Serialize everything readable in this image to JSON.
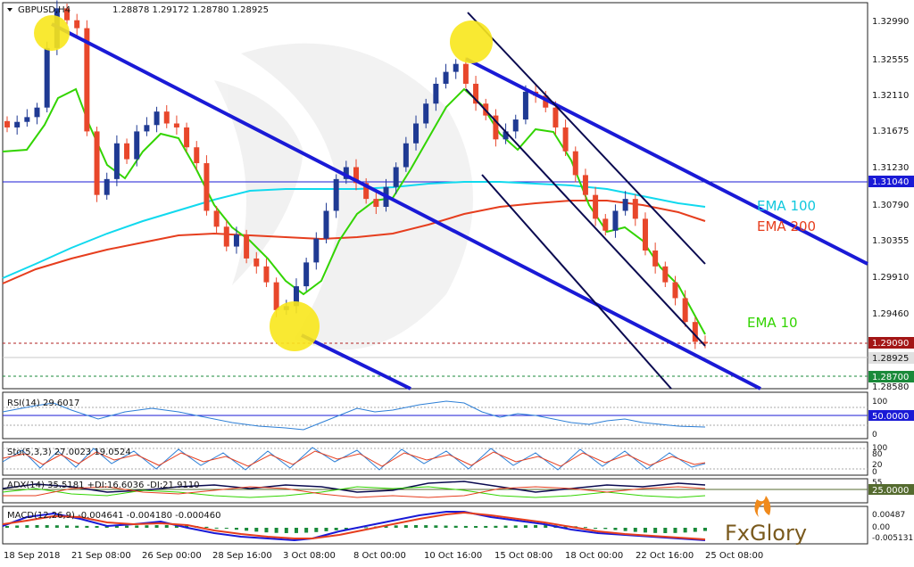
{
  "header": {
    "symbol": "GBPUSD,H4",
    "ohlc": "1.28878 1.29172 1.28780 1.28925"
  },
  "price_axis": {
    "ticks": [
      "1.32990",
      "1.32555",
      "1.32110",
      "1.31675",
      "1.31230",
      "1.30790",
      "1.30355",
      "1.29910",
      "1.29460",
      "1.28580"
    ]
  },
  "price_tags": {
    "hline_level": "1.31040",
    "resistance": "1.29090",
    "current": "1.28925",
    "support": "1.28700"
  },
  "labels": {
    "ema100": "EMA 100",
    "ema200": "EMA 200",
    "ema10": "EMA 10"
  },
  "indicators": {
    "rsi": {
      "title": "RSI(14) 29.6017",
      "ticks": [
        "100",
        "0"
      ],
      "tag": "50.0000"
    },
    "sto": {
      "title": "Sto(5,3,3) 27.0023 19.0524",
      "ticks": [
        "100",
        "80",
        "20",
        "0"
      ]
    },
    "adx": {
      "title": "ADX(14) 35.5181 +DI:16.6036 -DI:21.9110",
      "ticks": [
        "55"
      ],
      "tag": "25.0000"
    },
    "macd": {
      "title": "MACD(12,26,9) -0.004641 -0.004180 -0.000460",
      "ticks": [
        "0.00487",
        "0.00",
        "-0.005131"
      ]
    }
  },
  "time_axis": {
    "labels": [
      "18 Sep 2018",
      "21 Sep 08:00",
      "26 Sep 00:00",
      "28 Sep 16:00",
      "3 Oct 08:00",
      "8 Oct 00:00",
      "10 Oct 16:00",
      "15 Oct 08:00",
      "18 Oct 00:00",
      "22 Oct 16:00",
      "25 Oct 08:00"
    ]
  },
  "logo": {
    "text": "FxGlory"
  },
  "colors": {
    "bull": "#1f3a93",
    "bear": "#e8472b",
    "ema10": "#32d400",
    "ema100": "#11d9ee",
    "ema200": "#e63e1e",
    "trend": "#1a1ad6",
    "highlight": "#f8e71c"
  },
  "chart_data": {
    "type": "candlestick",
    "symbol": "GBPUSD",
    "timeframe": "H4",
    "ylim": [
      1.2836,
      1.3321
    ],
    "series_close_approx": [
      1.3165,
      1.3172,
      1.3178,
      1.319,
      1.3265,
      1.3315,
      1.33,
      1.329,
      1.316,
      1.308,
      1.31,
      1.3145,
      1.3125,
      1.316,
      1.3168,
      1.3185,
      1.317,
      1.3165,
      1.314,
      1.312,
      1.306,
      1.304,
      1.3015,
      1.303,
      1.3,
      1.299,
      1.297,
      1.2935,
      1.294,
      1.2965,
      1.2995,
      1.3025,
      1.306,
      1.31,
      1.3115,
      1.3095,
      1.3075,
      1.3065,
      1.309,
      1.3115,
      1.3145,
      1.317,
      1.3195,
      1.322,
      1.3235,
      1.3245,
      1.322,
      1.3195,
      1.318,
      1.315,
      1.316,
      1.3175,
      1.321,
      1.3205,
      1.319,
      1.3165,
      1.3135,
      1.3105,
      1.308,
      1.305,
      1.3035,
      1.306,
      1.3075,
      1.305,
      1.301,
      1.299,
      1.297,
      1.295,
      1.292,
      1.2895,
      1.2893
    ],
    "ema_labels": [
      "EMA 10",
      "EMA 100",
      "EMA 200"
    ],
    "horizontal_levels": [
      1.3104,
      1.2909,
      1.287
    ],
    "current_price": 1.28925
  }
}
